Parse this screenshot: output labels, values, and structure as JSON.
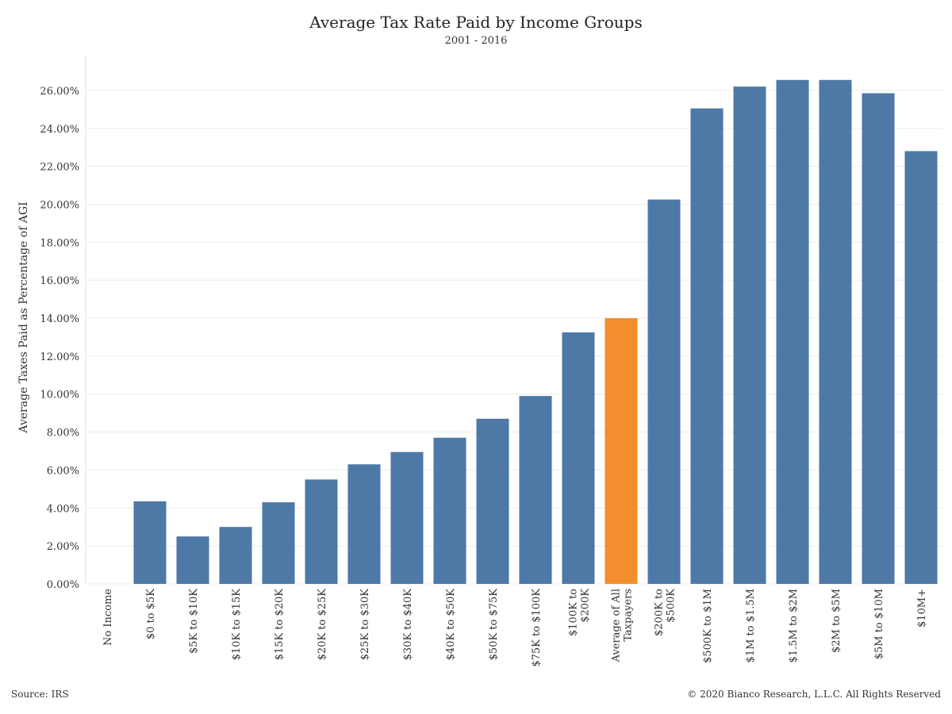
{
  "chart_data": {
    "type": "bar",
    "title": "Average Tax Rate Paid by Income Groups",
    "subtitle": "2001 - 2016",
    "ylabel": "Average Taxes Paid as Percentage of AGI",
    "xlabel": "",
    "ylim": [
      0,
      27
    ],
    "yticks": [
      "0.00%",
      "2.00%",
      "4.00%",
      "6.00%",
      "8.00%",
      "10.00%",
      "12.00%",
      "14.00%",
      "16.00%",
      "18.00%",
      "20.00%",
      "22.00%",
      "24.00%",
      "26.00%"
    ],
    "ytick_values": [
      0,
      2,
      4,
      6,
      8,
      10,
      12,
      14,
      16,
      18,
      20,
      22,
      24,
      26
    ],
    "grid": true,
    "categories": [
      [
        "No Income"
      ],
      [
        "$0 to $5K"
      ],
      [
        "$5K to $10K"
      ],
      [
        "$10K to $15K"
      ],
      [
        "$15K to $20K"
      ],
      [
        "$20K to $25K"
      ],
      [
        "$25K to $30K"
      ],
      [
        "$30K to $40K"
      ],
      [
        "$40K to $50K"
      ],
      [
        "$50K to $75K"
      ],
      [
        "$75K to $100K"
      ],
      [
        "$100K to",
        "$200K"
      ],
      [
        "Average of All",
        "Taxpayers"
      ],
      [
        "$200K to",
        "$500K"
      ],
      [
        "$500K to $1M"
      ],
      [
        "$1M to $1.5M"
      ],
      [
        "$1.5M to $2M"
      ],
      [
        "$2M to $5M"
      ],
      [
        "$5M to $10M"
      ],
      [
        "$10M+"
      ]
    ],
    "values": [
      0.0,
      4.35,
      2.5,
      3.0,
      4.3,
      5.5,
      6.3,
      6.95,
      7.7,
      8.7,
      9.9,
      13.25,
      14.0,
      20.25,
      25.05,
      26.2,
      26.55,
      26.55,
      25.85,
      22.8
    ],
    "colors": {
      "default": "#4e79a7",
      "highlight": "#f28e2b",
      "highlight_category": "Average of All Taxpayers"
    }
  },
  "footer": {
    "source": "Source: IRS",
    "copyright": "© 2020 Bianco Research, L.L.C. All Rights Reserved"
  }
}
